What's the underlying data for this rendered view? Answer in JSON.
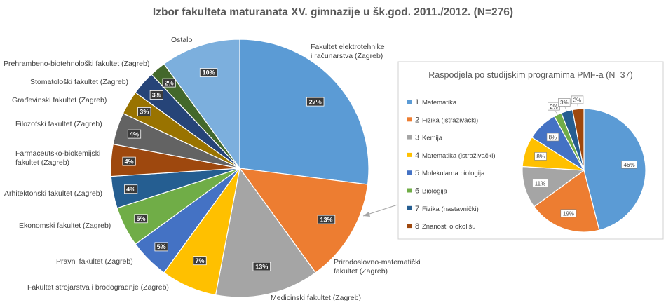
{
  "chart_data": [
    {
      "type": "pie",
      "title": "Izbor fakulteta maturanata XV. gimnazije u šk.god. 2011./2012. (N=276)",
      "categories": [
        "Fakultet elektrotehnike i računarstva (Zagreb)",
        "Prirodoslovno-matematički fakultet (Zagreb)",
        "Medicinski fakultet (Zagreb)",
        "Fakultet strojarstva i brodogradnje (Zagreb)",
        "Pravni fakultet (Zagreb)",
        "Ekonomski fakultet (Zagreb)",
        "Arhitektonski fakultet (Zagreb)",
        "Farmaceutsko-biokemijski fakultet (Zagreb)",
        "Filozofski fakultet (Zagreb)",
        "Građevinski fakultet (Zagreb)",
        "Stomatološki fakultet (Zagreb)",
        "Prehrambeno-biotehnološki fakultet (Zagreb)",
        "Ostalo"
      ],
      "values": [
        27,
        13,
        13,
        7,
        5,
        5,
        4,
        4,
        4,
        3,
        3,
        2,
        10
      ],
      "labels": [
        "27%",
        "13%",
        "13%",
        "7%",
        "5%",
        "5%",
        "4%",
        "4%",
        "4%",
        "3%",
        "3%",
        "2%",
        "10%"
      ],
      "colors": [
        "#5b9bd5",
        "#ed7d31",
        "#a5a5a5",
        "#ffc000",
        "#4472c4",
        "#70ad47",
        "#255e91",
        "#9e480e",
        "#636363",
        "#997300",
        "#264478",
        "#43682b",
        "#7cafdd"
      ]
    },
    {
      "type": "pie",
      "title": "Raspodjela po studijskim programima PMF-a (N=37)",
      "categories": [
        "Matematika",
        "Fizika (istraživački)",
        "Kemija",
        "Matematika (istraživački)",
        "Molekularna biologija",
        "Biologija",
        "Fizika (nastavnički)",
        "Znanosti o okolišu"
      ],
      "legend_numbers": [
        "1",
        "2",
        "3",
        "4",
        "5",
        "6",
        "7",
        "8"
      ],
      "values": [
        46,
        19,
        11,
        8,
        8,
        2,
        3,
        3
      ],
      "labels": [
        "46%",
        "19%",
        "11%",
        "8%",
        "8%",
        "2%",
        "3%",
        "3%"
      ],
      "colors": [
        "#5b9bd5",
        "#ed7d31",
        "#a5a5a5",
        "#ffc000",
        "#4472c4",
        "#70ad47",
        "#255e91",
        "#9e480e"
      ],
      "legend_position": "left"
    }
  ]
}
